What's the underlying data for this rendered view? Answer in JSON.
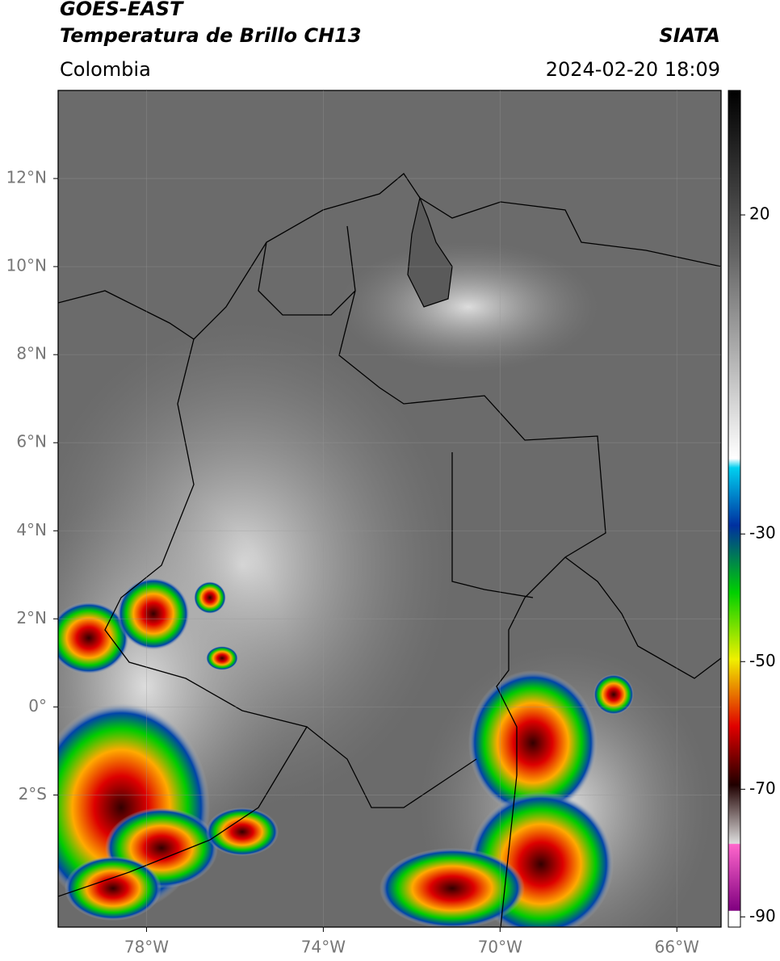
{
  "header": {
    "title": "GOES-EAST",
    "subtitle": "Temperatura de Brillo CH13",
    "source": "SIATA",
    "region": "Colombia",
    "datetime": "2024-02-20 18:09"
  },
  "map": {
    "lon_range": [
      -80,
      -65
    ],
    "lat_range": [
      -5,
      14
    ],
    "lat_ticks": [
      {
        "value": 12,
        "label": "12°N"
      },
      {
        "value": 10,
        "label": "10°N"
      },
      {
        "value": 8,
        "label": "8°N"
      },
      {
        "value": 6,
        "label": "6°N"
      },
      {
        "value": 4,
        "label": "4°N"
      },
      {
        "value": 2,
        "label": "2°N"
      },
      {
        "value": 0,
        "label": "0°"
      },
      {
        "value": -2,
        "label": "2°S"
      }
    ],
    "lon_ticks": [
      {
        "value": -78,
        "label": "78°W"
      },
      {
        "value": -74,
        "label": "74°W"
      },
      {
        "value": -70,
        "label": "70°W"
      },
      {
        "value": -66,
        "label": "66°W"
      }
    ]
  },
  "colorbar": {
    "range": [
      -91.6,
      39.5
    ],
    "ticks": [
      20,
      -30,
      -50,
      -70,
      -90
    ]
  }
}
